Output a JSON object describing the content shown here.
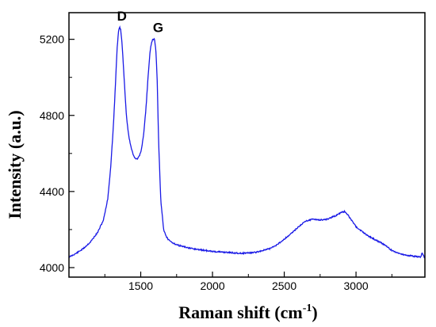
{
  "chart_data": {
    "type": "line",
    "title": "",
    "xlabel": "Raman shift (cm",
    "xlabel_sup": "-1",
    "xlabel_suffix": ")",
    "ylabel": "Intensity (a.u.)",
    "xlim": [
      1000,
      3480
    ],
    "ylim": [
      3950,
      5340
    ],
    "x_ticks": [
      1500,
      2000,
      2500,
      3000
    ],
    "y_ticks": [
      4000,
      4400,
      4800,
      5200
    ],
    "grid": false,
    "line_color": "#1a1ae6",
    "series": [
      {
        "x": [
          1000,
          1050,
          1100,
          1150,
          1200,
          1240,
          1270,
          1290,
          1310,
          1325,
          1335,
          1345,
          1352,
          1360,
          1370,
          1380,
          1390,
          1400,
          1415,
          1430,
          1445,
          1460,
          1475,
          1490,
          1505,
          1520,
          1535,
          1550,
          1565,
          1580,
          1595,
          1605,
          1615,
          1625,
          1640,
          1660,
          1680,
          1700,
          1750,
          1800,
          1850,
          1900,
          1950,
          2000,
          2100,
          2200,
          2300,
          2400,
          2450,
          2500,
          2550,
          2600,
          2650,
          2700,
          2750,
          2800,
          2850,
          2900,
          2920,
          2950,
          3000,
          3050,
          3100,
          3150,
          3200,
          3250,
          3300,
          3350,
          3400,
          3450,
          3460,
          3480
        ],
        "y": [
          4055,
          4075,
          4100,
          4135,
          4185,
          4250,
          4360,
          4520,
          4750,
          4980,
          5150,
          5240,
          5265,
          5250,
          5180,
          5050,
          4920,
          4800,
          4700,
          4640,
          4600,
          4575,
          4570,
          4585,
          4620,
          4700,
          4820,
          4990,
          5140,
          5195,
          5205,
          5150,
          4980,
          4650,
          4350,
          4200,
          4160,
          4140,
          4120,
          4110,
          4100,
          4095,
          4090,
          4085,
          4080,
          4075,
          4080,
          4100,
          4120,
          4150,
          4180,
          4215,
          4245,
          4255,
          4250,
          4255,
          4270,
          4290,
          4295,
          4270,
          4215,
          4185,
          4160,
          4140,
          4120,
          4090,
          4075,
          4065,
          4060,
          4055,
          4075,
          4050
        ]
      }
    ],
    "annotations": [
      {
        "text": "D",
        "x": 1352,
        "y": 5265
      },
      {
        "text": "G",
        "x": 1605,
        "y": 5205
      }
    ]
  }
}
